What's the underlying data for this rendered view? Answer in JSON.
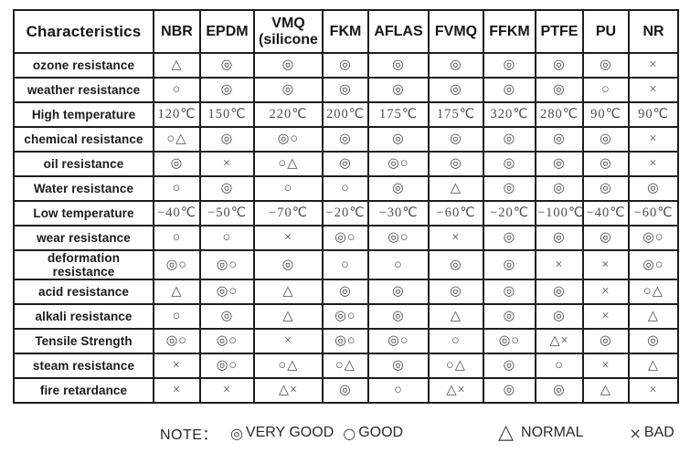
{
  "table": {
    "columns": [
      "Characteristics",
      "NBR",
      "EPDM",
      "VMQ\n(silicone",
      "FKM",
      "AFLAS",
      "FVMQ",
      "FFKM",
      "PTFE",
      "PU",
      "NR"
    ],
    "rows": [
      {
        "label": "ozone resistance",
        "values": [
          "△",
          "◎",
          "◎",
          "◎",
          "◎",
          "◎",
          "◎",
          "◎",
          "◎",
          "×"
        ]
      },
      {
        "label": "weather resistance",
        "values": [
          "○",
          "◎",
          "◎",
          "◎",
          "◎",
          "◎",
          "◎",
          "◎",
          "○",
          "×"
        ]
      },
      {
        "label": "High temperature",
        "values": [
          "120℃",
          "150℃",
          "220℃",
          "200℃",
          "175℃",
          "175℃",
          "320℃",
          "280℃",
          "90℃",
          "90℃"
        ]
      },
      {
        "label": "chemical resistance",
        "values": [
          "○△",
          "◎",
          "◎○",
          "◎",
          "◎",
          "◎",
          "◎",
          "◎",
          "◎",
          "×"
        ]
      },
      {
        "label": "oil resistance",
        "values": [
          "◎",
          "×",
          "○△",
          "◎",
          "◎○",
          "◎",
          "◎",
          "◎",
          "◎",
          "×"
        ]
      },
      {
        "label": "Water resistance",
        "values": [
          "○",
          "◎",
          "○",
          "○",
          "◎",
          "△",
          "◎",
          "◎",
          "◎",
          "◎"
        ]
      },
      {
        "label": "Low temperature",
        "values": [
          "−40℃",
          "−50℃",
          "−70℃",
          "−20℃",
          "−30℃",
          "−60℃",
          "−20℃",
          "−100℃",
          "−40℃",
          "−60℃"
        ]
      },
      {
        "label": "wear resistance",
        "values": [
          "○",
          "○",
          "×",
          "◎○",
          "◎○",
          "×",
          "◎",
          "◎",
          "◎",
          "◎○"
        ]
      },
      {
        "label": "deformation resistance",
        "values": [
          "◎○",
          "◎○",
          "◎",
          "○",
          "○",
          "◎",
          "◎",
          "×",
          "×",
          "◎○"
        ]
      },
      {
        "label": "acid resistance",
        "values": [
          "△",
          "◎○",
          "△",
          "◎",
          "◎",
          "◎",
          "◎",
          "◎",
          "×",
          "○△"
        ]
      },
      {
        "label": "alkali resistance",
        "values": [
          "○",
          "◎",
          "△",
          "◎○",
          "◎",
          "△",
          "◎",
          "◎",
          "×",
          "△"
        ]
      },
      {
        "label": "Tensile Strength",
        "values": [
          "◎○",
          "◎○",
          "×",
          "◎○",
          "◎○",
          "○",
          "◎○",
          "△×",
          "◎",
          "◎"
        ]
      },
      {
        "label": "steam resistance",
        "values": [
          "×",
          "◎○",
          "○△",
          "○△",
          "◎",
          "○△",
          "◎",
          "○",
          "×",
          "△"
        ]
      },
      {
        "label": "fire retardance",
        "values": [
          "×",
          "×",
          "△×",
          "◎",
          "○",
          "△×",
          "◎",
          "◎",
          "△",
          "×"
        ]
      }
    ]
  },
  "legend": {
    "note_label": "NOTE：",
    "items": [
      {
        "symbol": "◎",
        "label": "VERY GOOD"
      },
      {
        "symbol": "○",
        "label": "GOOD"
      },
      {
        "symbol": "△",
        "label": "NORMAL"
      },
      {
        "symbol": "×",
        "label": "BAD"
      }
    ]
  }
}
